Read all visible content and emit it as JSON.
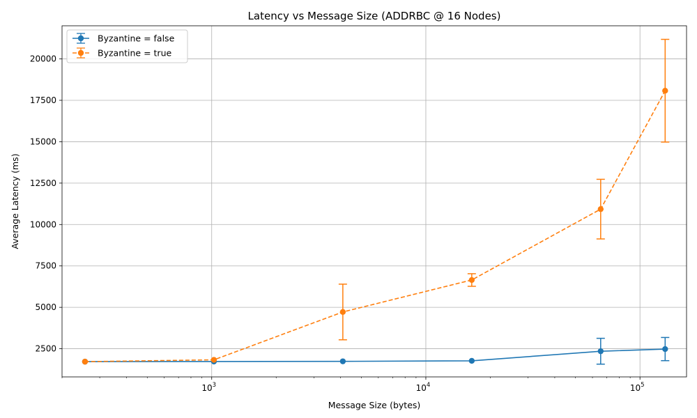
{
  "chart_data": {
    "type": "line",
    "title": "Latency vs Message Size (ADDRBC @ 16 Nodes)",
    "xlabel": "Message Size (bytes)",
    "ylabel": "Average Latency (ms)",
    "xscale": "log",
    "xlim": [
      200,
      165000
    ],
    "ylim": [
      800,
      22000
    ],
    "grid": true,
    "legend_position": "top-left",
    "x_ticks": [
      {
        "value": 1000,
        "base": "10",
        "exp": "3"
      },
      {
        "value": 10000,
        "base": "10",
        "exp": "4"
      },
      {
        "value": 100000,
        "base": "10",
        "exp": "5"
      }
    ],
    "y_ticks": [
      {
        "value": 2500,
        "label": "2500"
      },
      {
        "value": 5000,
        "label": "5000"
      },
      {
        "value": 7500,
        "label": "7500"
      },
      {
        "value": 10000,
        "label": "10000"
      },
      {
        "value": 12500,
        "label": "12500"
      },
      {
        "value": 15000,
        "label": "15000"
      },
      {
        "value": 17500,
        "label": "17500"
      },
      {
        "value": 20000,
        "label": "20000"
      }
    ],
    "series": [
      {
        "name": "Byzantine = false",
        "color": "#1f77b4",
        "linestyle": "solid",
        "x": [
          256,
          1024,
          4096,
          16384,
          65536,
          131072
        ],
        "y": [
          1720,
          1730,
          1740,
          1770,
          2350,
          2480
        ],
        "err": [
          0,
          0,
          0,
          0,
          780,
          700
        ]
      },
      {
        "name": "Byzantine = true",
        "color": "#ff7f0e",
        "linestyle": "dashed",
        "x": [
          256,
          1024,
          4096,
          16384,
          65536,
          131072
        ],
        "y": [
          1720,
          1830,
          4720,
          6650,
          10930,
          18080
        ],
        "err": [
          0,
          0,
          1680,
          380,
          1800,
          3100
        ]
      }
    ]
  }
}
